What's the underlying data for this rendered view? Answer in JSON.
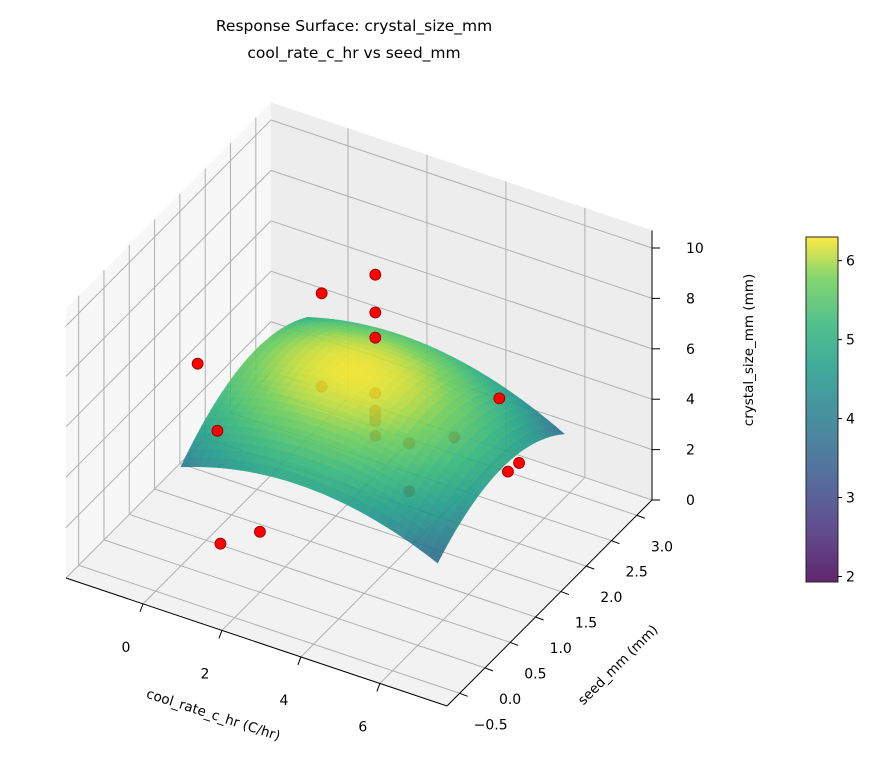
{
  "chart_data": {
    "type": "surface3d",
    "title": "Response Surface: crystal_size_mm",
    "subtitle": "cool_rate_c_hr vs seed_mm",
    "xlabel": "cool_rate_c_hr (C/hr)",
    "ylabel": "seed_mm (mm)",
    "zlabel": "crystal_size_mm (mm)",
    "xlim": [
      -1.95,
      7.7
    ],
    "ylim": [
      -0.75,
      3.3
    ],
    "zlim": [
      0,
      10.7
    ],
    "xticks": [
      "0",
      "2",
      "4",
      "6"
    ],
    "yticks": [
      "-0.5",
      "0.0",
      "0.5",
      "1.0",
      "1.5",
      "2.0",
      "2.5",
      "3.0"
    ],
    "zticks": [
      "0",
      "2",
      "4",
      "6",
      "8",
      "10"
    ],
    "grid": true,
    "surface": {
      "colormap": "viridis",
      "x_range": [
        0,
        6.5
      ],
      "y_range": [
        0,
        2.5
      ],
      "model": "quadratic",
      "z_range": [
        1.9,
        6.3
      ]
    },
    "colorbar": {
      "min": 1.93,
      "max": 6.3,
      "ticks": [
        "2",
        "3",
        "4",
        "5",
        "6"
      ]
    },
    "points_color": "#ff0000",
    "points": [
      {
        "x": 3,
        "y": 1.5,
        "z": 10.1
      },
      {
        "x": 3,
        "y": 1.5,
        "z": 8.6
      },
      {
        "x": 3,
        "y": 1.5,
        "z": 7.6
      },
      {
        "x": 3,
        "y": 1.5,
        "z": 5.4
      },
      {
        "x": 3,
        "y": 1.5,
        "z": 4.7
      },
      {
        "x": 3,
        "y": 1.5,
        "z": 4.5
      },
      {
        "x": 3,
        "y": 1.5,
        "z": 4.3
      },
      {
        "x": 3,
        "y": 1.5,
        "z": 3.7
      },
      {
        "x": 1,
        "y": 2,
        "z": 7.3
      },
      {
        "x": 1,
        "y": 2,
        "z": 3.6
      },
      {
        "x": 4.5,
        "y": 1,
        "z": 5.2
      },
      {
        "x": 4.5,
        "y": 1,
        "z": 3.3
      },
      {
        "x": -1.5,
        "y": 1.5,
        "z": 4.2
      },
      {
        "x": -1,
        "y": 1.5,
        "z": 1.8
      },
      {
        "x": 1,
        "y": 0,
        "z": 1.4
      },
      {
        "x": 2,
        "y": 0,
        "z": 2.4
      },
      {
        "x": 5.5,
        "y": 2,
        "z": 5.5
      },
      {
        "x": 6,
        "y": 2,
        "z": 3.2
      },
      {
        "x": 7,
        "y": 1,
        "z": 5.4
      },
      {
        "x": 5,
        "y": 1.5,
        "z": 4.7
      }
    ]
  }
}
